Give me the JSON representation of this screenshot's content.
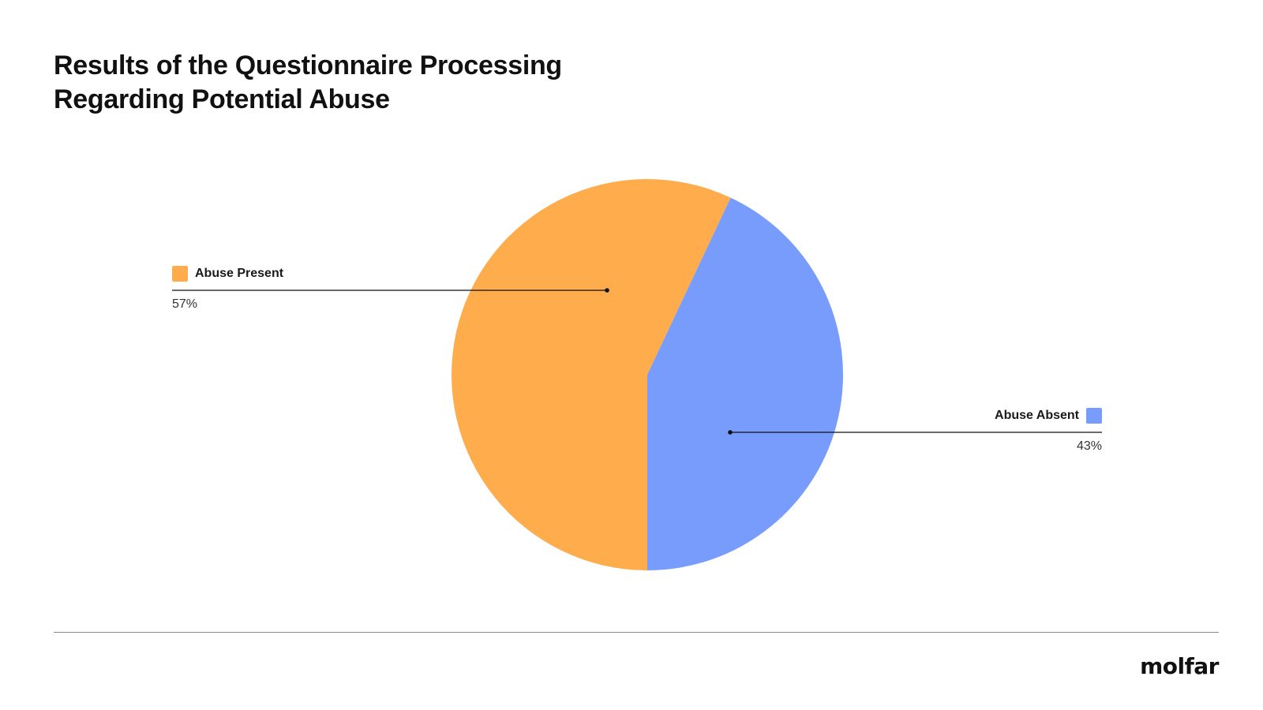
{
  "title": {
    "line1": "Results of the Questionnaire Processing",
    "line2": "Regarding Potential Abuse"
  },
  "chart_data": {
    "type": "pie",
    "title": "Results of the Questionnaire Processing Regarding Potential Abuse",
    "slices": [
      {
        "label": "Abuse Present",
        "value": 57,
        "display": "57%",
        "color": "#FFAC4D"
      },
      {
        "label": "Abuse Absent",
        "value": 43,
        "display": "43%",
        "color": "#789CFC"
      }
    ],
    "legend": "callouts-left-and-right"
  },
  "colors": {
    "background": "#FFFFFF",
    "leader_line": "#111111",
    "footer_rule": "#888888"
  },
  "footer": {
    "logo_text": "molfar"
  }
}
